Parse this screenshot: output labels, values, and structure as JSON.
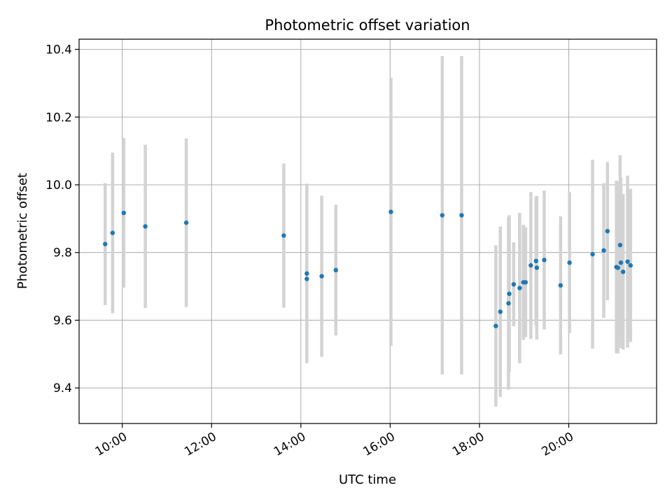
{
  "chart_data": {
    "type": "scatter",
    "title": "Photometric offset variation",
    "xlabel": "UTC time",
    "ylabel": "Photometric offset",
    "grid": true,
    "x_ticks": [
      "10:00",
      "12:00",
      "14:00",
      "16:00",
      "18:00",
      "20:00"
    ],
    "y_ticks": [
      "9.4",
      "9.6",
      "9.8",
      "10.0",
      "10.2",
      "10.4"
    ],
    "xlim": [
      "09:02",
      "21:58"
    ],
    "ylim": [
      9.295,
      10.43
    ],
    "colors": {
      "point": "#1f77b4",
      "errorbar": "#d3d3d3",
      "grid": "#b0b0b0"
    },
    "series": [
      {
        "points": [
          {
            "x": "09:37",
            "y": 9.825,
            "err": 0.18
          },
          {
            "x": "09:47",
            "y": 9.858,
            "err": 0.237
          },
          {
            "x": "10:02",
            "y": 9.917,
            "err": 0.221
          },
          {
            "x": "10:31",
            "y": 9.877,
            "err": 0.241
          },
          {
            "x": "11:26",
            "y": 9.888,
            "err": 0.249
          },
          {
            "x": "13:37",
            "y": 9.85,
            "err": 0.213
          },
          {
            "x": "14:08",
            "y": 9.738,
            "err": 0.265
          },
          {
            "x": "14:08",
            "y": 9.722,
            "err": 0.248
          },
          {
            "x": "14:28",
            "y": 9.73,
            "err": 0.238
          },
          {
            "x": "14:47",
            "y": 9.748,
            "err": 0.193
          },
          {
            "x": "16:01",
            "y": 9.92,
            "err": 0.396
          },
          {
            "x": "17:10",
            "y": 9.91,
            "err": 0.47
          },
          {
            "x": "17:36",
            "y": 9.91,
            "err": 0.47
          },
          {
            "x": "18:22",
            "y": 9.583,
            "err": 0.238
          },
          {
            "x": "18:28",
            "y": 9.625,
            "err": 0.252
          },
          {
            "x": "18:39",
            "y": 9.65,
            "err": 0.255
          },
          {
            "x": "18:40",
            "y": 9.678,
            "err": 0.232
          },
          {
            "x": "18:46",
            "y": 9.706,
            "err": 0.124
          },
          {
            "x": "18:54",
            "y": 9.695,
            "err": 0.222
          },
          {
            "x": "18:59",
            "y": 9.712,
            "err": 0.17
          },
          {
            "x": "19:02",
            "y": 9.712,
            "err": 0.162
          },
          {
            "x": "19:09",
            "y": 9.762,
            "err": 0.217
          },
          {
            "x": "19:16",
            "y": 9.775,
            "err": 0.19
          },
          {
            "x": "19:17",
            "y": 9.755,
            "err": 0.212
          },
          {
            "x": "19:27",
            "y": 9.778,
            "err": 0.205
          },
          {
            "x": "19:49",
            "y": 9.703,
            "err": 0.204
          },
          {
            "x": "20:01",
            "y": 9.77,
            "err": 0.208
          },
          {
            "x": "20:32",
            "y": 9.795,
            "err": 0.279
          },
          {
            "x": "20:47",
            "y": 9.806,
            "err": 0.199
          },
          {
            "x": "20:52",
            "y": 9.863,
            "err": 0.204
          },
          {
            "x": "21:04",
            "y": 9.757,
            "err": 0.255
          },
          {
            "x": "21:06",
            "y": 9.755,
            "err": 0.253
          },
          {
            "x": "21:09",
            "y": 9.822,
            "err": 0.265
          },
          {
            "x": "21:10",
            "y": 9.77,
            "err": 0.252
          },
          {
            "x": "21:13",
            "y": 9.743,
            "err": 0.23
          },
          {
            "x": "21:19",
            "y": 9.773,
            "err": 0.254
          },
          {
            "x": "21:23",
            "y": 9.762,
            "err": 0.226
          }
        ]
      }
    ]
  }
}
